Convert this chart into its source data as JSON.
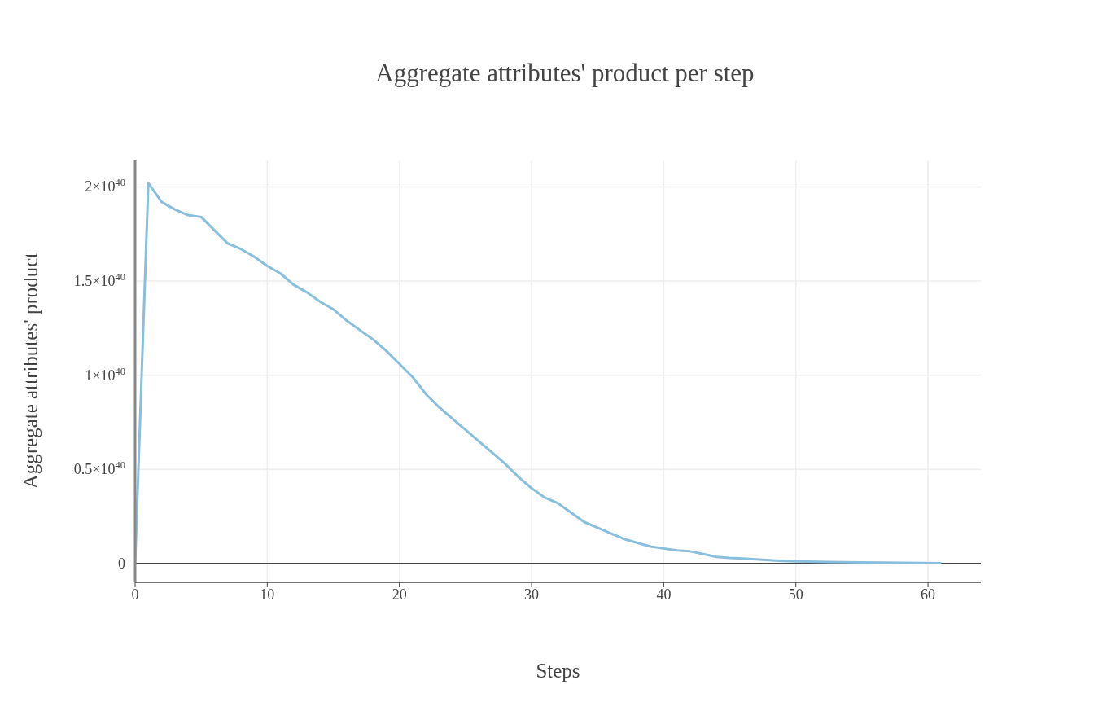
{
  "chart_data": {
    "type": "line",
    "title": "Aggregate attributes' product per step",
    "xlabel": "Steps",
    "ylabel": "Aggregate attributes' product",
    "x": [
      0,
      1,
      2,
      3,
      4,
      5,
      6,
      7,
      8,
      9,
      10,
      11,
      12,
      13,
      14,
      15,
      16,
      17,
      18,
      19,
      20,
      21,
      22,
      23,
      24,
      25,
      26,
      27,
      28,
      29,
      30,
      31,
      32,
      33,
      34,
      35,
      36,
      37,
      38,
      39,
      40,
      41,
      42,
      43,
      44,
      45,
      46,
      47,
      48,
      49,
      50,
      55,
      61
    ],
    "series": [
      {
        "color": "#89bedc",
        "values": [
          0,
          2.02e+40,
          1.92e+40,
          1.88e+40,
          1.85e+40,
          1.84e+40,
          1.77e+40,
          1.7e+40,
          1.67e+40,
          1.63e+40,
          1.58e+40,
          1.54e+40,
          1.48e+40,
          1.44e+40,
          1.39e+40,
          1.35e+40,
          1.29e+40,
          1.24e+40,
          1.19e+40,
          1.13e+40,
          1.06e+40,
          9.9e+39,
          9e+39,
          8.3e+39,
          7.7e+39,
          7.1e+39,
          6.5e+39,
          5.9e+39,
          5.3e+39,
          4.6e+39,
          4e+39,
          3.5e+39,
          3.2e+39,
          2.7e+39,
          2.2e+39,
          1.9e+39,
          1.6e+39,
          1.3e+39,
          1.1e+39,
          9e+38,
          8e+38,
          7e+38,
          6.5e+38,
          5e+38,
          3.5e+38,
          3e+38,
          2.7e+38,
          2.2e+38,
          1.8e+38,
          1.4e+38,
          1.1e+38,
          6e+37,
          2e+37
        ]
      }
    ],
    "xlim": [
      0,
      64
    ],
    "xticks": [
      0,
      10,
      20,
      30,
      40,
      50,
      60
    ],
    "ylim": [
      -1e+39,
      2.14e+40
    ],
    "yticks": [
      0,
      {
        "value": 5e+39,
        "label": "0.5×10$^{40}$"
      },
      {
        "value": 1e+40,
        "label": "1×10$^{40}$"
      },
      {
        "value": 1.5e+40,
        "label": "1.5×10$^{40}$"
      },
      {
        "value": 2e+40,
        "label": "2×10$^{40}$"
      }
    ],
    "ref_lines": [
      {
        "axis": "y",
        "value": 0,
        "color": "#444444"
      }
    ],
    "grid": true,
    "legend": false,
    "marker": "none",
    "line_style": "solid"
  }
}
